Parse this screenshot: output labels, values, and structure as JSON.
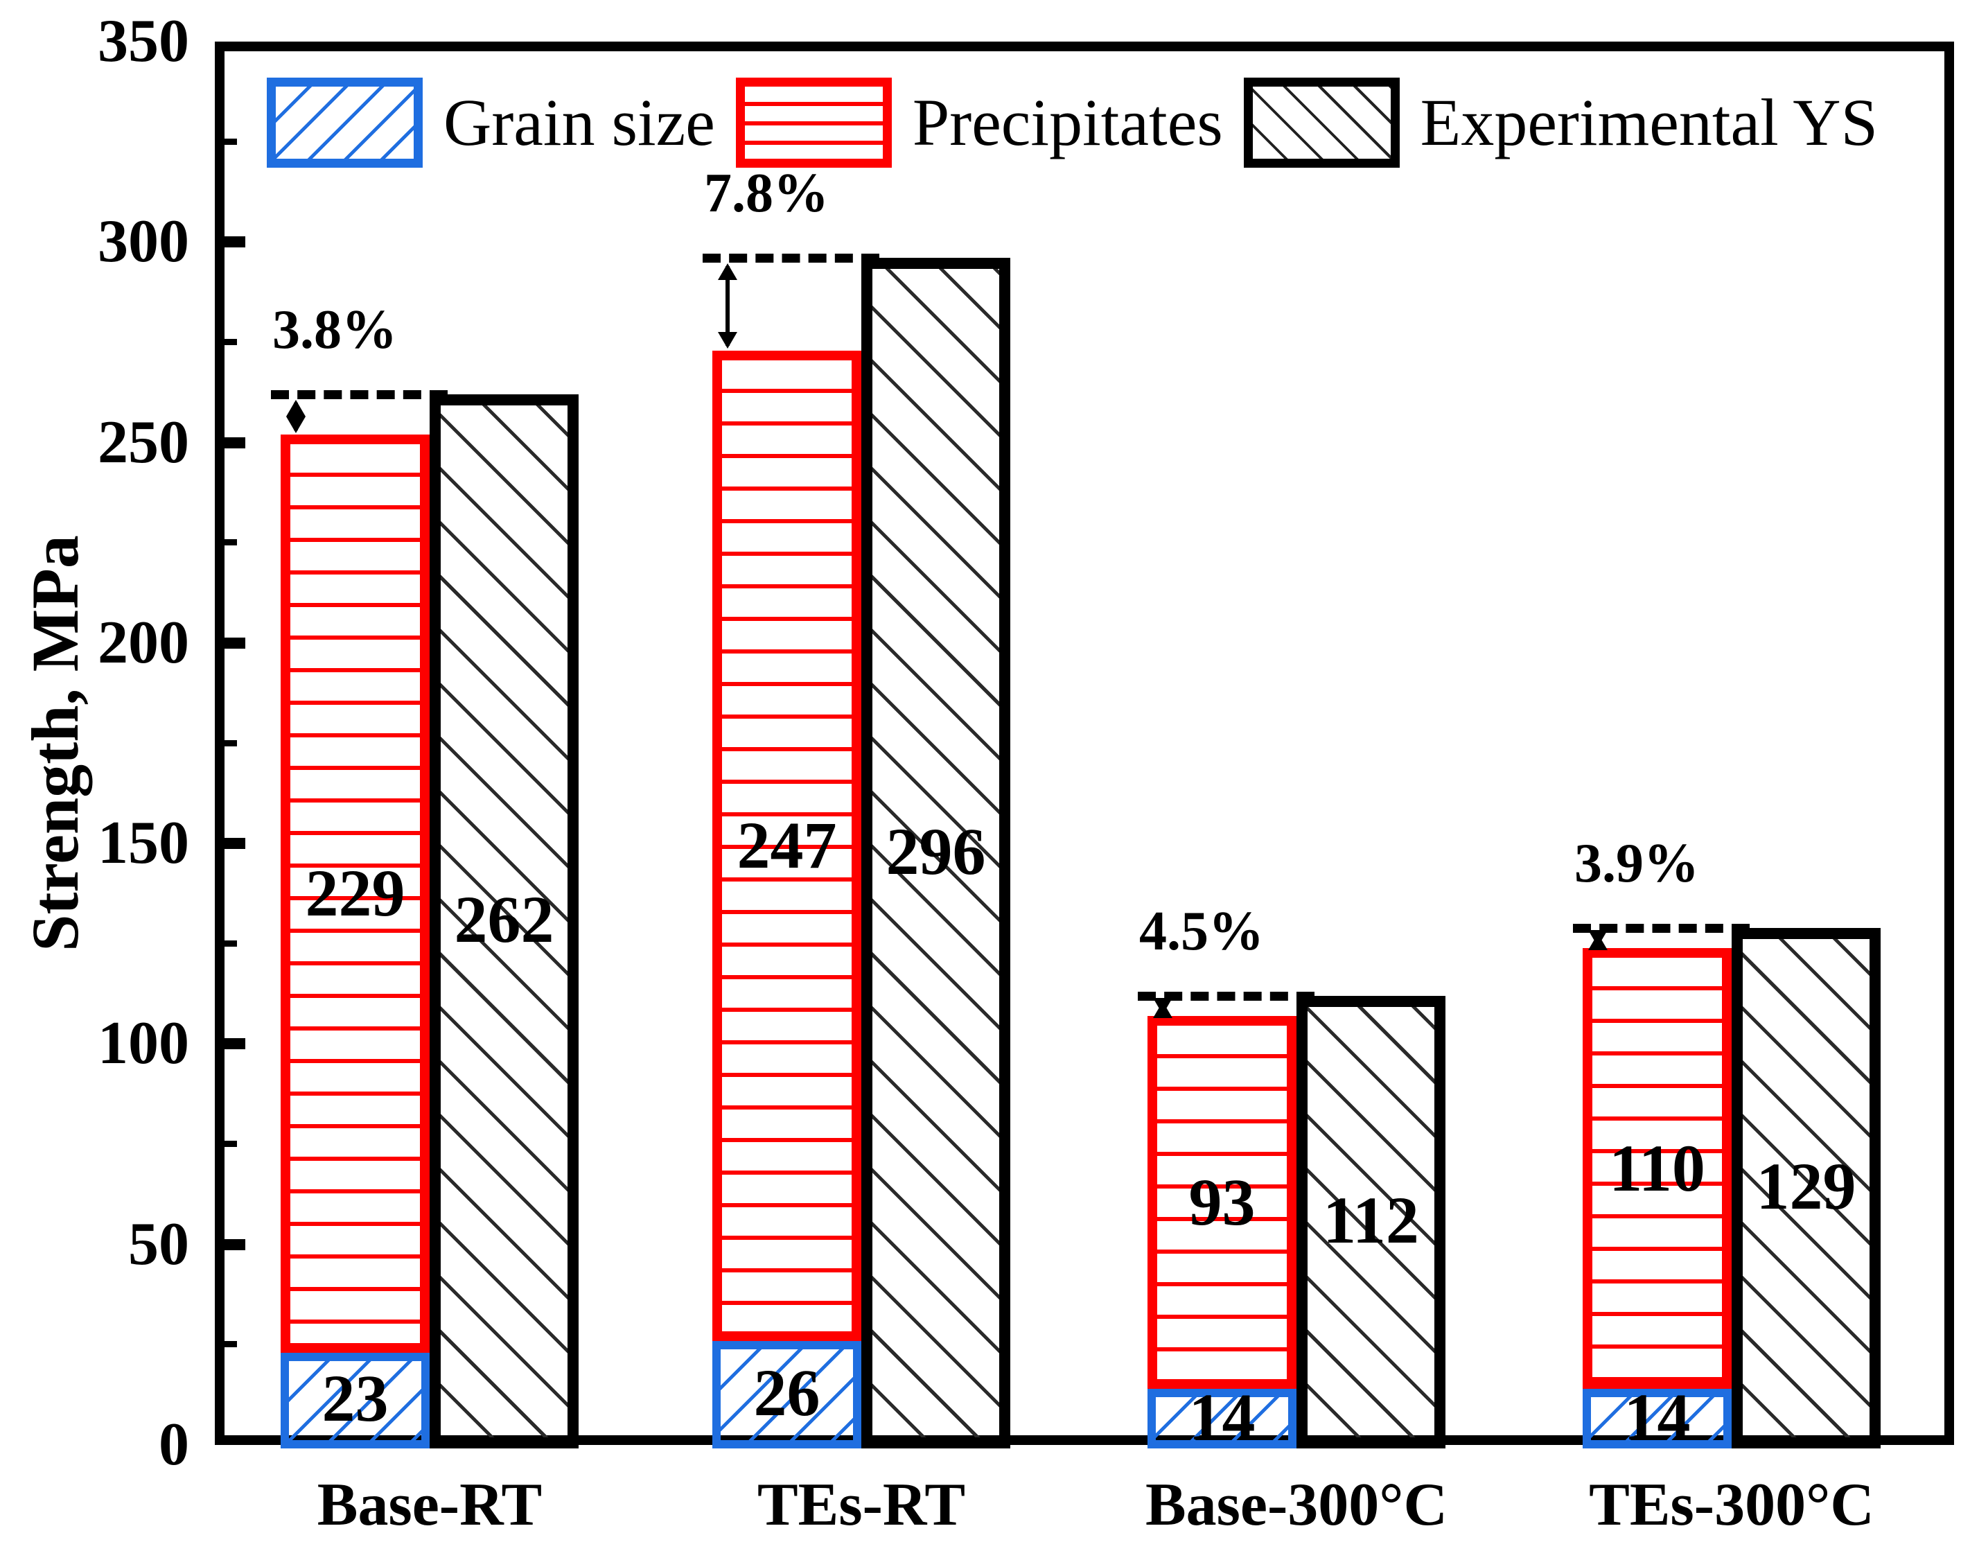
{
  "colors": {
    "grain_blue": "#1f6ee0",
    "precip_red": "#fe0000",
    "exp_black": "#000000"
  },
  "chart_data": {
    "type": "bar",
    "title": "",
    "xlabel": "",
    "ylabel": "Strength, MPa",
    "ylim": [
      0,
      350
    ],
    "yticks_major": [
      0,
      50,
      100,
      150,
      200,
      250,
      300,
      350
    ],
    "minor_tick_step": 25,
    "grid": false,
    "legend_position": "top-inside",
    "categories": [
      "Base-RT",
      "TEs-RT",
      "Base-300°C",
      "TEs-300°C"
    ],
    "series": [
      {
        "name": "Grain size",
        "role": "stacked-bottom",
        "hatch": "forward-diagonal",
        "values": [
          23,
          26,
          14,
          14
        ]
      },
      {
        "name": "Precipitates",
        "role": "stacked-top",
        "hatch": "horizontal",
        "values": [
          229,
          247,
          93,
          110
        ]
      },
      {
        "name": "Experimental YS",
        "role": "separate-bar",
        "hatch": "back-diagonal",
        "values": [
          262,
          296,
          112,
          129
        ]
      }
    ],
    "stack_totals": [
      252,
      273,
      107,
      124
    ],
    "gap_labels": [
      "3.8%",
      "7.8%",
      "4.5%",
      "3.9%"
    ]
  }
}
